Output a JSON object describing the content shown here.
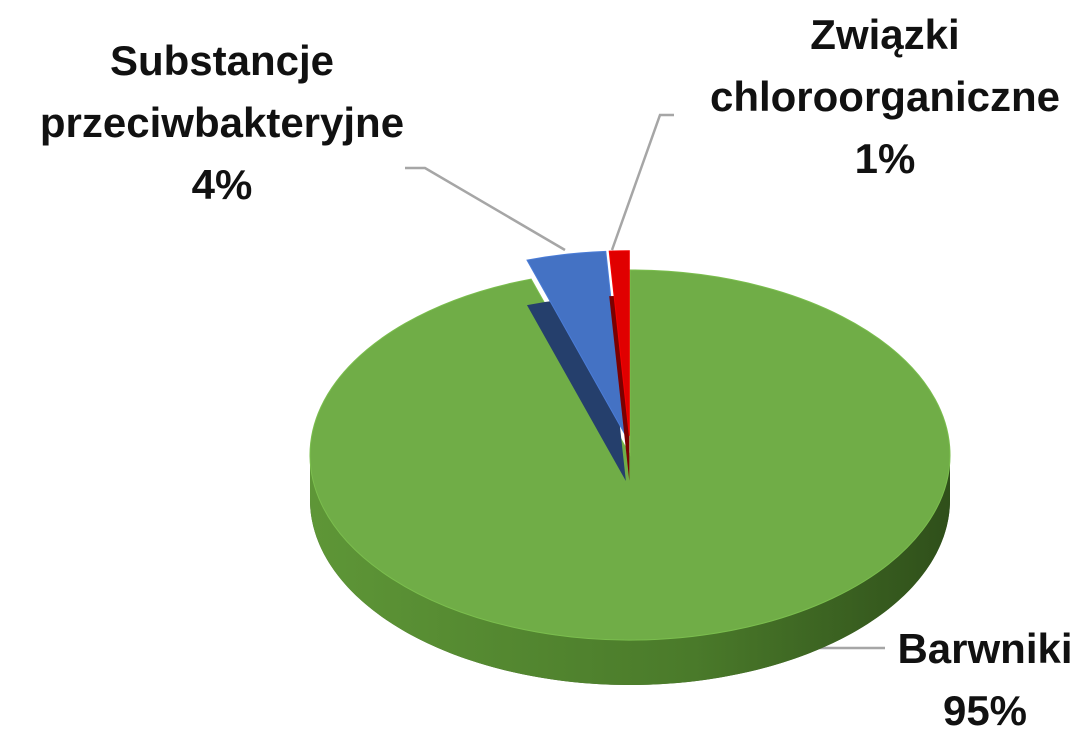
{
  "chart_data": {
    "type": "pie",
    "categories": [
      "Barwniki",
      "Substancje przeciwbakteryjne",
      "Związki chloroorganiczne"
    ],
    "values": [
      95,
      4,
      1
    ],
    "value_labels": [
      "95%",
      "4%",
      "1%"
    ],
    "colors": [
      "#70ad47",
      "#4472c4",
      "#e00000"
    ]
  }
}
